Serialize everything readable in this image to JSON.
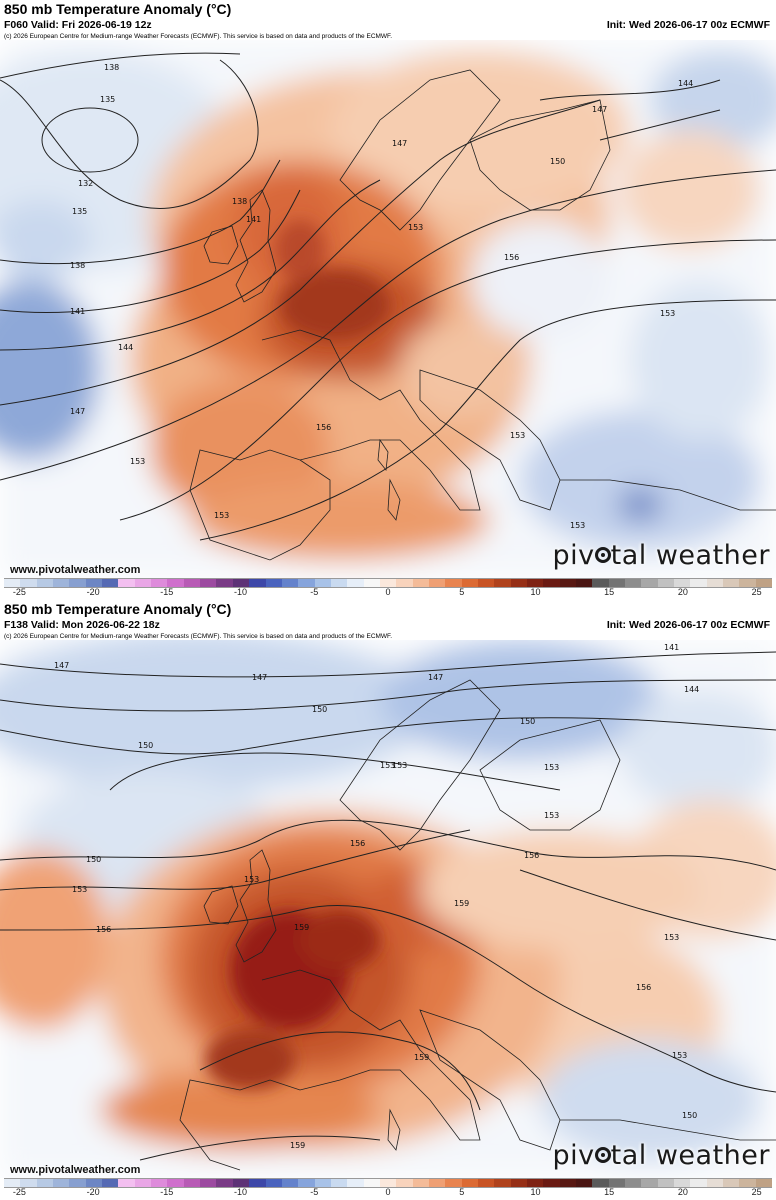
{
  "panels": [
    {
      "title": "850 mb Temperature Anomaly (°C)",
      "valid": "F060 Valid: Fri 2026-06-19 12z",
      "init": "Init: Wed 2026-06-17 00z ECMWF",
      "copyright": "(c) 2026 European Centre for Medium-range Weather Forecasts (ECMWF). This service is based on data and products of the ECMWF.",
      "website": "www.pivotalweather.com",
      "brand": "pivotal weather",
      "contour_labels": [
        "138",
        "135",
        "132",
        "135",
        "138",
        "141",
        "144",
        "147",
        "153",
        "147",
        "150",
        "147",
        "153",
        "141",
        "138",
        "156",
        "153",
        "156",
        "153",
        "153",
        "153",
        "144"
      ]
    },
    {
      "title": "850 mb Temperature Anomaly (°C)",
      "valid": "F138 Valid: Mon 2026-06-22 18z",
      "init": "Init: Wed 2026-06-17 00z ECMWF",
      "copyright": "(c) 2026 European Centre for Medium-range Weather Forecasts (ECMWF). This service is based on data and products of the ECMWF.",
      "website": "www.pivotalweather.com",
      "brand": "pivotal weather",
      "contour_labels": [
        "147",
        "147",
        "141",
        "144",
        "150",
        "150",
        "147",
        "150",
        "153",
        "153",
        "150",
        "153",
        "156",
        "156",
        "156",
        "159",
        "159",
        "159",
        "159",
        "153",
        "153",
        "156",
        "153",
        "153",
        "153",
        "150"
      ]
    }
  ],
  "colorbar": {
    "ticks": [
      "-25",
      "-20",
      "-15",
      "-10",
      "-5",
      "0",
      "5",
      "10",
      "15",
      "20",
      "25"
    ],
    "colors": [
      "#e4ecf6",
      "#cfdcee",
      "#b6c9e4",
      "#9eb4da",
      "#879fd0",
      "#6d86c4",
      "#5569b4",
      "#f3bff0",
      "#e9a6e6",
      "#de8bdb",
      "#cf6fcc",
      "#b85ab5",
      "#9c4aa0",
      "#7a3b86",
      "#5d3276",
      "#3d47a8",
      "#4a63be",
      "#6482cc",
      "#86a4dc",
      "#a8c2e8",
      "#c9daf0",
      "#e6eef8",
      "#f7f7f7",
      "#fbe8dc",
      "#f8d3bc",
      "#f4bb98",
      "#ef9f73",
      "#e8834f",
      "#dc6a33",
      "#c85324",
      "#b0421c",
      "#962f16",
      "#7e2213",
      "#6a1a12",
      "#581812",
      "#4a1512",
      "#5a5a5a",
      "#737373",
      "#8d8d8d",
      "#a7a7a7",
      "#c1c1c1",
      "#d9d9d9",
      "#ececec",
      "#e6ddd5",
      "#d9c8b8",
      "#ccb49c",
      "#bfa184"
    ],
    "units": "°C"
  }
}
